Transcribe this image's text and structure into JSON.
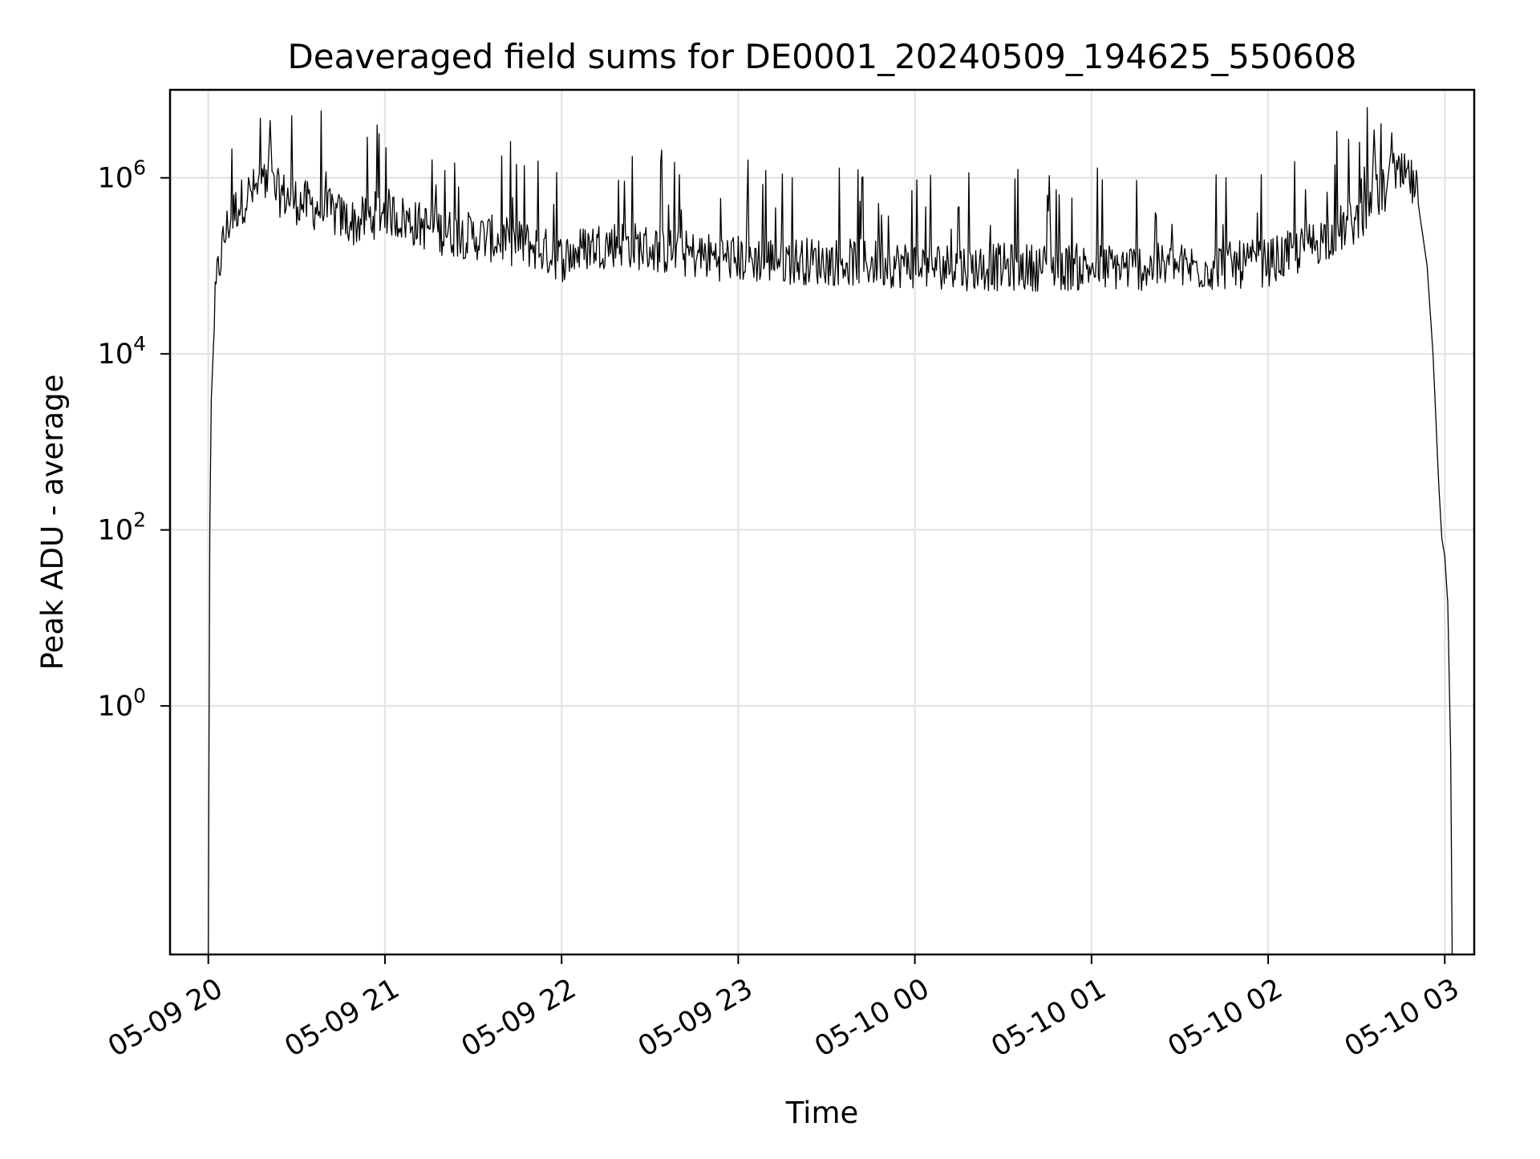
{
  "chart_data": {
    "type": "line",
    "title": "Deaveraged field sums for DE0001_20240509_194625_550608",
    "xlabel": "Time",
    "ylabel": "Peak ADU - average",
    "x_ticks": [
      {
        "value": "2024-05-09T20:00",
        "label": "05-09 20"
      },
      {
        "value": "2024-05-09T21:00",
        "label": "05-09 21"
      },
      {
        "value": "2024-05-09T22:00",
        "label": "05-09 22"
      },
      {
        "value": "2024-05-09T23:00",
        "label": "05-09 23"
      },
      {
        "value": "2024-05-10T00:00",
        "label": "05-10 00"
      },
      {
        "value": "2024-05-10T01:00",
        "label": "05-10 01"
      },
      {
        "value": "2024-05-10T02:00",
        "label": "05-10 02"
      },
      {
        "value": "2024-05-10T03:00",
        "label": "05-10 03"
      }
    ],
    "y_ticks": [
      {
        "value": 1,
        "base": "10",
        "exp": "0"
      },
      {
        "value": 100,
        "base": "10",
        "exp": "2"
      },
      {
        "value": 10000,
        "base": "10",
        "exp": "4"
      },
      {
        "value": 1000000,
        "base": "10",
        "exp": "6"
      }
    ],
    "xlim": [
      "2024-05-09T19:47",
      "2024-05-10T03:10"
    ],
    "ylim": [
      0.0015,
      10000000
    ],
    "yscale": "log",
    "grid": true,
    "line_color": "#000000",
    "series": [
      {
        "points": [
          [
            "2024-05-09T20:00",
            0.0015
          ],
          [
            "2024-05-09T20:00:30",
            100
          ],
          [
            "2024-05-09T20:01",
            3000
          ],
          [
            "2024-05-09T20:02",
            20000
          ],
          [
            "2024-05-09T20:03",
            60000
          ],
          [
            "2024-05-09T20:05",
            150000
          ],
          [
            "2024-05-09T20:07",
            260000
          ],
          [
            "2024-05-09T20:10",
            400000
          ],
          [
            "2024-05-09T20:14",
            550000
          ],
          [
            "2024-05-09T20:18",
            650000
          ],
          [
            "2024-05-09T20:20",
            700000
          ],
          [
            "2024-05-09T20:21",
            4500000
          ],
          [
            "2024-05-09T20:22",
            600000
          ],
          [
            "2024-05-09T20:30",
            450000
          ],
          [
            "2024-05-09T20:40",
            350000
          ],
          [
            "2024-05-09T20:50",
            250000
          ],
          [
            "2024-05-09T21:00",
            350000
          ],
          [
            "2024-05-09T21:10",
            250000
          ],
          [
            "2024-05-09T21:20",
            200000
          ],
          [
            "2024-05-09T21:30",
            180000
          ],
          [
            "2024-05-09T21:40",
            160000
          ],
          [
            "2024-05-09T21:50",
            140000
          ],
          [
            "2024-05-09T22:00",
            100000
          ],
          [
            "2024-05-09T22:10",
            140000
          ],
          [
            "2024-05-09T22:20",
            150000
          ],
          [
            "2024-05-09T22:30",
            130000
          ],
          [
            "2024-05-09T22:45",
            110000
          ],
          [
            "2024-05-09T23:00",
            100000
          ],
          [
            "2024-05-09T23:20",
            95000
          ],
          [
            "2024-05-09T23:40",
            90000
          ],
          [
            "2024-05-10T00:00",
            85000
          ],
          [
            "2024-05-10T00:20",
            80000
          ],
          [
            "2024-05-10T00:40",
            80000
          ],
          [
            "2024-05-10T01:00",
            80000
          ],
          [
            "2024-05-10T01:20",
            80000
          ],
          [
            "2024-05-10T01:40",
            80000
          ],
          [
            "2024-05-10T02:00",
            90000
          ],
          [
            "2024-05-10T02:10",
            120000
          ],
          [
            "2024-05-10T02:20",
            180000
          ],
          [
            "2024-05-10T02:30",
            270000
          ],
          [
            "2024-05-10T02:35",
            400000
          ],
          [
            "2024-05-10T02:36",
            3500000
          ],
          [
            "2024-05-10T02:37",
            500000
          ],
          [
            "2024-05-10T02:40",
            600000
          ],
          [
            "2024-05-10T02:42",
            2500000
          ],
          [
            "2024-05-10T02:43",
            750000
          ],
          [
            "2024-05-10T02:45",
            850000
          ],
          [
            "2024-05-10T02:48",
            800000
          ],
          [
            "2024-05-10T02:51",
            500000
          ],
          [
            "2024-05-10T02:54",
            100000
          ],
          [
            "2024-05-10T02:56",
            10000
          ],
          [
            "2024-05-10T02:58",
            300
          ],
          [
            "2024-05-10T02:59",
            80
          ],
          [
            "2024-05-10T03:00",
            50
          ],
          [
            "2024-05-10T03:01",
            15
          ],
          [
            "2024-05-10T03:02",
            0.3
          ],
          [
            "2024-05-10T03:02:30",
            0.0015
          ]
        ]
      }
    ]
  }
}
